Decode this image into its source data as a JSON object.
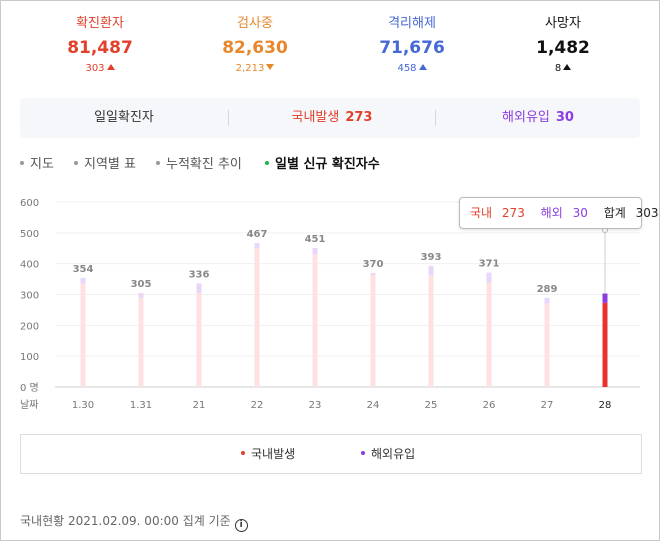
{
  "stats": [
    {
      "label": "확진환자",
      "value": "81,487",
      "delta": "303",
      "direction": "up",
      "color": "#e1402b"
    },
    {
      "label": "검사중",
      "value": "82,630",
      "delta": "2,213",
      "direction": "down",
      "color": "#e8872b"
    },
    {
      "label": "격리해제",
      "value": "71,676",
      "delta": "458",
      "direction": "up",
      "color": "#4668d4"
    },
    {
      "label": "사망자",
      "value": "1,482",
      "delta": "8",
      "direction": "up",
      "color": "#111111"
    }
  ],
  "summary": {
    "daily_label": "일일확진자",
    "domestic_label": "국내발생",
    "domestic_value": "273",
    "overseas_label": "해외유입",
    "overseas_value": "30",
    "domestic_color": "#e1402b",
    "overseas_color": "#8b3ee0"
  },
  "tabs": [
    {
      "label": "지도",
      "active": false
    },
    {
      "label": "지역별 표",
      "active": false
    },
    {
      "label": "누적확진 추이",
      "active": false
    },
    {
      "label": "일별 신규 확진자수",
      "active": true
    }
  ],
  "tooltip": {
    "domestic_label": "국내",
    "domestic_value": "273",
    "overseas_label": "해외",
    "overseas_value": "30",
    "total_label": "합계",
    "total_value": "303"
  },
  "legend": {
    "domestic": "국내발생",
    "overseas": "해외유입"
  },
  "footer": {
    "text": "국내현황 2021.02.09. 00:00 집계 기준",
    "icon": "info-icon",
    "icon_glyph": "i"
  },
  "chart_data": {
    "type": "bar",
    "stacked": true,
    "categories": [
      "1.30",
      "1.31",
      "2.1",
      "2.2",
      "2.3",
      "2.4",
      "2.5",
      "2.6",
      "2.7",
      "2.8"
    ],
    "tick_labels": [
      "1.30",
      "1.31",
      "21",
      "22",
      "23",
      "24",
      "25",
      "26",
      "27",
      "28"
    ],
    "x_label": "날짜",
    "y_ticks": [
      "600",
      "500",
      "400",
      "300",
      "200",
      "100",
      "0 명"
    ],
    "ylim": [
      0,
      600
    ],
    "series": [
      {
        "name": "국내발생",
        "values": [
          335,
          289,
          305,
          451,
          431,
          364,
          362,
          339,
          271,
          273
        ],
        "color": "#ffe1e1",
        "highlight_color": "#e8322d"
      },
      {
        "name": "해외유입",
        "values": [
          19,
          16,
          31,
          16,
          20,
          6,
          31,
          32,
          18,
          30
        ],
        "color": "#e9d6fb",
        "highlight_color": "#8b3ee0"
      }
    ],
    "totals": [
      354,
      305,
      336,
      467,
      451,
      370,
      393,
      371,
      289,
      303
    ],
    "highlight_index": 9,
    "grid": "horizontal",
    "legend_position": "bottom"
  }
}
